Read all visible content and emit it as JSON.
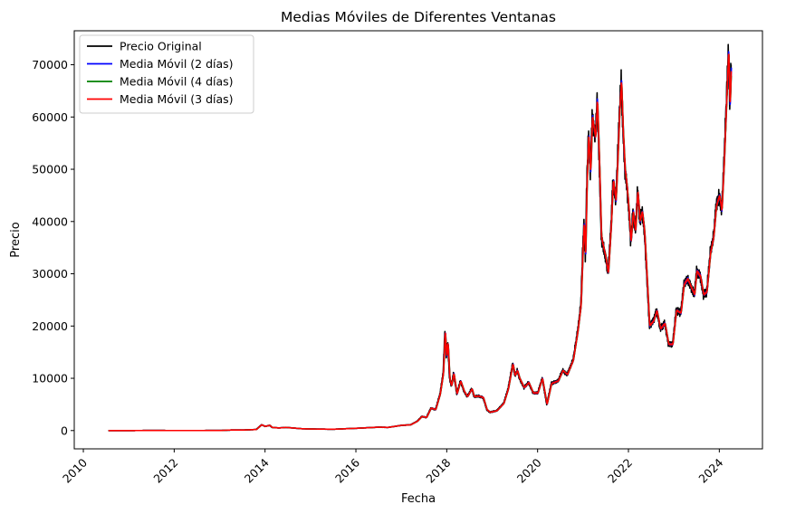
{
  "chart_data": {
    "type": "line",
    "title": "Medias Móviles de Diferentes Ventanas",
    "xlabel": "Fecha",
    "ylabel": "Precio",
    "xlim": [
      2009.8,
      2024.95
    ],
    "ylim": [
      -3500,
      76500
    ],
    "x_ticks": [
      2010,
      2012,
      2014,
      2016,
      2018,
      2020,
      2022,
      2024
    ],
    "y_ticks": [
      0,
      10000,
      20000,
      30000,
      40000,
      50000,
      60000,
      70000
    ],
    "legend_position": "top-left",
    "grid": false,
    "series": [
      {
        "name": "Precio Original",
        "color": "#000000"
      },
      {
        "name": "Media Móvil (2 días)",
        "color": "#0000ff"
      },
      {
        "name": "Media Móvil (4 días)",
        "color": "#008000"
      },
      {
        "name": "Media Móvil (3 días)",
        "color": "#ff0000"
      }
    ],
    "price_points": [
      [
        2010.55,
        0
      ],
      [
        2011.0,
        0
      ],
      [
        2011.5,
        15
      ],
      [
        2012.0,
        5
      ],
      [
        2012.5,
        7
      ],
      [
        2013.0,
        13
      ],
      [
        2013.25,
        100
      ],
      [
        2013.5,
        100
      ],
      [
        2013.8,
        200
      ],
      [
        2013.92,
        1100
      ],
      [
        2014.0,
        800
      ],
      [
        2014.1,
        1000
      ],
      [
        2014.15,
        600
      ],
      [
        2014.3,
        500
      ],
      [
        2014.45,
        600
      ],
      [
        2014.6,
        500
      ],
      [
        2014.8,
        350
      ],
      [
        2015.0,
        300
      ],
      [
        2015.5,
        250
      ],
      [
        2015.9,
        400
      ],
      [
        2016.0,
        430
      ],
      [
        2016.5,
        650
      ],
      [
        2016.7,
        600
      ],
      [
        2017.0,
        1000
      ],
      [
        2017.2,
        1100
      ],
      [
        2017.35,
        1800
      ],
      [
        2017.45,
        2700
      ],
      [
        2017.55,
        2500
      ],
      [
        2017.65,
        4300
      ],
      [
        2017.75,
        4000
      ],
      [
        2017.85,
        7000
      ],
      [
        2017.92,
        11000
      ],
      [
        2017.96,
        19300
      ],
      [
        2017.99,
        14000
      ],
      [
        2018.02,
        17000
      ],
      [
        2018.06,
        10000
      ],
      [
        2018.1,
        8500
      ],
      [
        2018.15,
        11000
      ],
      [
        2018.22,
        7000
      ],
      [
        2018.3,
        9500
      ],
      [
        2018.38,
        7500
      ],
      [
        2018.45,
        6500
      ],
      [
        2018.55,
        8000
      ],
      [
        2018.6,
        6500
      ],
      [
        2018.7,
        6600
      ],
      [
        2018.8,
        6300
      ],
      [
        2018.88,
        4000
      ],
      [
        2018.95,
        3500
      ],
      [
        2019.1,
        3800
      ],
      [
        2019.25,
        5200
      ],
      [
        2019.35,
        8000
      ],
      [
        2019.45,
        12800
      ],
      [
        2019.5,
        10500
      ],
      [
        2019.55,
        11500
      ],
      [
        2019.6,
        10000
      ],
      [
        2019.7,
        8200
      ],
      [
        2019.8,
        9200
      ],
      [
        2019.9,
        7200
      ],
      [
        2020.0,
        7200
      ],
      [
        2020.1,
        10000
      ],
      [
        2020.2,
        5000
      ],
      [
        2020.3,
        9000
      ],
      [
        2020.45,
        9500
      ],
      [
        2020.55,
        11500
      ],
      [
        2020.65,
        10700
      ],
      [
        2020.78,
        13500
      ],
      [
        2020.88,
        19000
      ],
      [
        2020.95,
        24000
      ],
      [
        2020.99,
        34000
      ],
      [
        2021.02,
        40000
      ],
      [
        2021.05,
        33000
      ],
      [
        2021.08,
        47000
      ],
      [
        2021.12,
        57000
      ],
      [
        2021.16,
        49000
      ],
      [
        2021.2,
        60000
      ],
      [
        2021.27,
        56000
      ],
      [
        2021.31,
        63500
      ],
      [
        2021.36,
        50000
      ],
      [
        2021.4,
        37000
      ],
      [
        2021.45,
        35000
      ],
      [
        2021.5,
        33000
      ],
      [
        2021.55,
        30000
      ],
      [
        2021.62,
        40000
      ],
      [
        2021.66,
        48000
      ],
      [
        2021.72,
        44000
      ],
      [
        2021.76,
        52000
      ],
      [
        2021.8,
        61000
      ],
      [
        2021.84,
        67000
      ],
      [
        2021.88,
        57000
      ],
      [
        2021.92,
        50000
      ],
      [
        2021.96,
        47000
      ],
      [
        2022.0,
        43000
      ],
      [
        2022.05,
        36000
      ],
      [
        2022.1,
        42000
      ],
      [
        2022.15,
        38000
      ],
      [
        2022.2,
        46000
      ],
      [
        2022.25,
        40000
      ],
      [
        2022.3,
        42000
      ],
      [
        2022.35,
        38000
      ],
      [
        2022.4,
        30000
      ],
      [
        2022.46,
        20000
      ],
      [
        2022.55,
        21000
      ],
      [
        2022.62,
        23000
      ],
      [
        2022.7,
        19500
      ],
      [
        2022.8,
        20500
      ],
      [
        2022.88,
        16500
      ],
      [
        2022.97,
        16500
      ],
      [
        2023.05,
        23000
      ],
      [
        2023.15,
        22500
      ],
      [
        2023.22,
        28000
      ],
      [
        2023.3,
        29000
      ],
      [
        2023.4,
        27000
      ],
      [
        2023.45,
        26000
      ],
      [
        2023.5,
        30500
      ],
      [
        2023.58,
        29500
      ],
      [
        2023.65,
        26000
      ],
      [
        2023.72,
        26500
      ],
      [
        2023.8,
        34000
      ],
      [
        2023.87,
        37000
      ],
      [
        2023.93,
        43000
      ],
      [
        2024.0,
        45000
      ],
      [
        2024.05,
        42000
      ],
      [
        2024.1,
        51000
      ],
      [
        2024.15,
        62000
      ],
      [
        2024.2,
        73000
      ],
      [
        2024.23,
        62000
      ],
      [
        2024.26,
        70000
      ]
    ]
  }
}
